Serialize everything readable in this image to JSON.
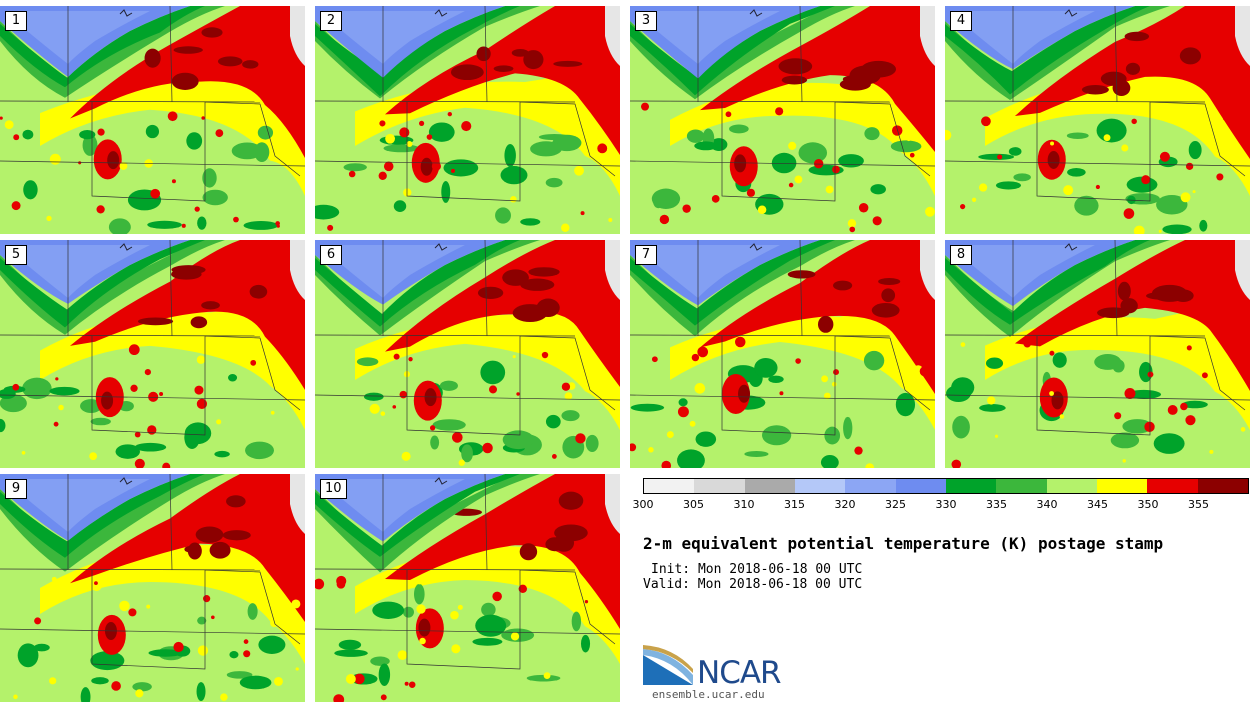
{
  "panels": [
    {
      "label": "1"
    },
    {
      "label": "2"
    },
    {
      "label": "3"
    },
    {
      "label": "4"
    },
    {
      "label": "5"
    },
    {
      "label": "6"
    },
    {
      "label": "7"
    },
    {
      "label": "8"
    },
    {
      "label": "9"
    },
    {
      "label": "10"
    }
  ],
  "legend": {
    "colors": [
      "#f2f2f2",
      "#d9d9d9",
      "#aaaaaa",
      "#b4c8f8",
      "#8ca6f4",
      "#6e8cf0",
      "#00a32a",
      "#3cb73c",
      "#b4f26b",
      "#ffff00",
      "#e60000",
      "#8c0000"
    ],
    "ticks": [
      "300",
      "305",
      "310",
      "315",
      "320",
      "325",
      "330",
      "335",
      "340",
      "345",
      "350",
      "355"
    ]
  },
  "title": "2-m equivalent potential temperature (K) postage stamp",
  "init": "Init: Mon 2018-06-18 00 UTC",
  "valid": "Valid: Mon 2018-06-18 00 UTC",
  "logo": {
    "text": "NCAR",
    "site": "ensemble.ucar.edu"
  }
}
